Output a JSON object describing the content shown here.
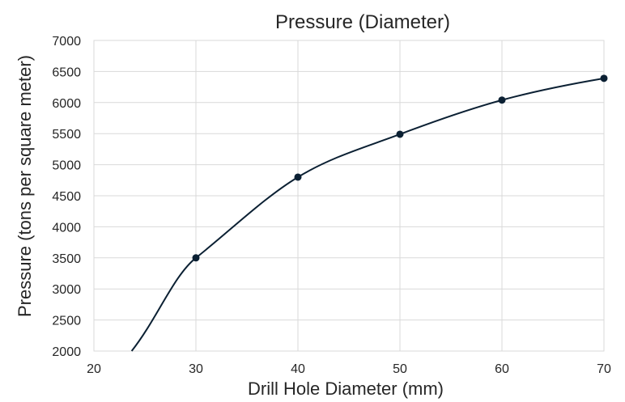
{
  "chart_data": {
    "type": "line",
    "title": "Pressure (Diameter)",
    "xlabel": "Drill Hole Diameter (mm)",
    "ylabel": "Pressure (tons per square meter)",
    "xlim": [
      20,
      70
    ],
    "ylim": [
      2000,
      7000
    ],
    "xticks": [
      20,
      30,
      40,
      50,
      60,
      70
    ],
    "yticks": [
      2000,
      2500,
      3000,
      3500,
      4000,
      4500,
      5000,
      5500,
      6000,
      6500,
      7000
    ],
    "grid": true,
    "legend": "none",
    "series": [
      {
        "color": "#0b2033",
        "x": [
          30,
          40,
          50,
          60,
          70
        ],
        "y": [
          3500,
          4800,
          5490,
          6040,
          6390
        ],
        "markers": true,
        "smooth": true,
        "extends_left_to_x": 23.7
      }
    ]
  }
}
